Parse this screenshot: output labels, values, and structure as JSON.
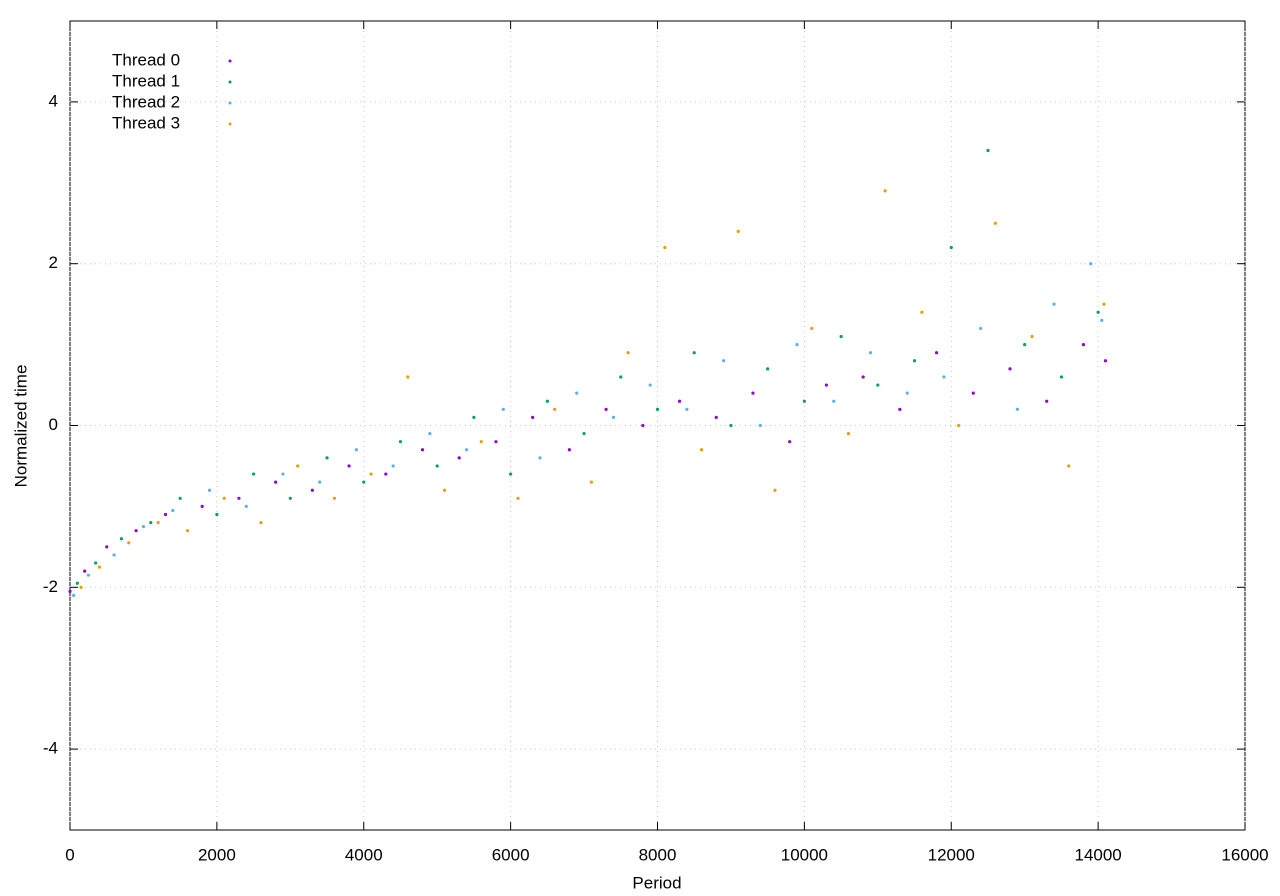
{
  "chart_data": {
    "type": "scatter",
    "x_label": "Period",
    "y_label": "Normalized time",
    "xlim": [
      0,
      16000
    ],
    "ylim": [
      -5,
      5
    ],
    "xticks": [
      0,
      2000,
      4000,
      6000,
      8000,
      10000,
      12000,
      14000,
      16000
    ],
    "yticks": [
      -4,
      -2,
      0,
      2,
      4
    ],
    "grid": true,
    "legend": "top-left",
    "series": [
      {
        "name": "Thread 0",
        "color": "#9400d3",
        "x": [
          0,
          200,
          500,
          900,
          1300,
          1800,
          2300,
          2800,
          3300,
          3800,
          4300,
          4800,
          5300,
          5800,
          6300,
          6800,
          7300,
          7800,
          8300,
          8800,
          9300,
          9800,
          10300,
          10800,
          11300,
          11800,
          12300,
          12800,
          13300,
          13800,
          14100
        ],
        "values": [
          -2.05,
          -1.8,
          -1.5,
          -1.3,
          -1.1,
          -1.0,
          -0.9,
          -0.7,
          -0.8,
          -0.5,
          -0.6,
          -0.3,
          -0.4,
          -0.2,
          0.1,
          -0.3,
          0.2,
          0.0,
          0.3,
          0.1,
          0.4,
          -0.2,
          0.5,
          0.6,
          0.2,
          0.9,
          0.4,
          0.7,
          0.3,
          1.0,
          0.8
        ]
      },
      {
        "name": "Thread 1",
        "color": "#009e73",
        "x": [
          100,
          350,
          700,
          1100,
          1500,
          2000,
          2500,
          3000,
          3500,
          4000,
          4500,
          5000,
          5500,
          6000,
          6500,
          7000,
          7500,
          8000,
          8500,
          9000,
          9500,
          10000,
          10500,
          11000,
          11500,
          12000,
          12500,
          13000,
          13500,
          14000
        ],
        "values": [
          -1.95,
          -1.7,
          -1.4,
          -1.2,
          -0.9,
          -1.1,
          -0.6,
          -0.9,
          -0.4,
          -0.7,
          -0.2,
          -0.5,
          0.1,
          -0.6,
          0.3,
          -0.1,
          0.6,
          0.2,
          0.9,
          0.0,
          0.7,
          0.3,
          1.1,
          0.5,
          0.8,
          2.2,
          3.4,
          1.0,
          0.6,
          1.4
        ]
      },
      {
        "name": "Thread 2",
        "color": "#56b4e9",
        "x": [
          50,
          250,
          600,
          1000,
          1400,
          1900,
          2400,
          2900,
          3400,
          3900,
          4400,
          4900,
          5400,
          5900,
          6400,
          6900,
          7400,
          7900,
          8400,
          8900,
          9400,
          9900,
          10400,
          10900,
          11400,
          11900,
          12400,
          12900,
          13400,
          13900,
          14050
        ],
        "values": [
          -2.1,
          -1.85,
          -1.6,
          -1.25,
          -1.05,
          -0.8,
          -1.0,
          -0.6,
          -0.7,
          -0.3,
          -0.5,
          -0.1,
          -0.3,
          0.2,
          -0.4,
          0.4,
          0.1,
          0.5,
          0.2,
          0.8,
          0.0,
          1.0,
          0.3,
          0.9,
          0.4,
          0.6,
          1.2,
          0.2,
          1.5,
          2.0,
          1.3
        ]
      },
      {
        "name": "Thread 3",
        "color": "#e69f00",
        "x": [
          150,
          400,
          800,
          1200,
          1600,
          2100,
          2600,
          3100,
          3600,
          4100,
          4600,
          5100,
          5600,
          6100,
          6600,
          7100,
          7600,
          8100,
          8600,
          9100,
          9600,
          10100,
          10600,
          11100,
          11600,
          12100,
          12600,
          13100,
          13600,
          14080
        ],
        "values": [
          -2.0,
          -1.75,
          -1.45,
          -1.2,
          -1.3,
          -0.9,
          -1.2,
          -0.5,
          -0.9,
          -0.6,
          0.6,
          -0.8,
          -0.2,
          -0.9,
          0.2,
          -0.7,
          0.9,
          2.2,
          -0.3,
          2.4,
          -0.8,
          1.2,
          -0.1,
          2.9,
          1.4,
          0.0,
          2.5,
          1.1,
          -0.5,
          1.5
        ]
      }
    ]
  }
}
